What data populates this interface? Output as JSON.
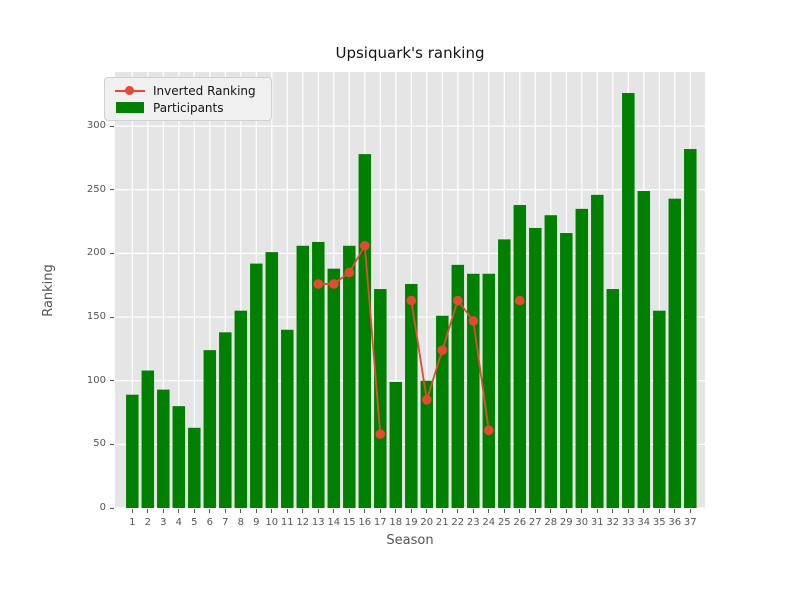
{
  "title": "Upsiquark's ranking",
  "legend": {
    "items": [
      {
        "label": "Inverted Ranking",
        "type": "line",
        "color": "#e24a33"
      },
      {
        "label": "Participants",
        "type": "patch",
        "color": "#008000"
      }
    ]
  },
  "chart_data": {
    "type": "bar+line",
    "title": "Upsiquark's ranking",
    "xlabel": "Season",
    "ylabel": "Ranking",
    "categories": [
      1,
      2,
      3,
      4,
      5,
      6,
      7,
      8,
      9,
      10,
      11,
      12,
      13,
      14,
      15,
      16,
      17,
      18,
      19,
      20,
      21,
      22,
      23,
      24,
      25,
      26,
      27,
      28,
      29,
      30,
      31,
      32,
      33,
      34,
      35,
      36,
      37
    ],
    "series": [
      {
        "name": "Participants",
        "type": "bar",
        "color": "#008000",
        "values": [
          89,
          108,
          93,
          80,
          63,
          124,
          138,
          155,
          192,
          201,
          140,
          206,
          209,
          188,
          206,
          278,
          172,
          99,
          176,
          100,
          151,
          191,
          184,
          184,
          211,
          238,
          220,
          230,
          216,
          235,
          246,
          172,
          326,
          249,
          155,
          243,
          282
        ]
      },
      {
        "name": "Inverted Ranking",
        "type": "line",
        "color": "#e24a33",
        "values": [
          null,
          null,
          null,
          null,
          null,
          null,
          null,
          null,
          null,
          null,
          null,
          null,
          176,
          176,
          185,
          206,
          58,
          null,
          163,
          85,
          124,
          163,
          147,
          61,
          null,
          163,
          null,
          null,
          null,
          null,
          null,
          null,
          null,
          null,
          null,
          null,
          null
        ]
      }
    ],
    "yticks": [
      0,
      50,
      100,
      150,
      200,
      250,
      300
    ],
    "ylim": [
      0,
      342.5
    ],
    "grid": true,
    "legend_position": "upper left",
    "plot_bg_color": "#e5e5e5",
    "grid_color": "#ffffff",
    "tick_label_color": "#555555"
  }
}
